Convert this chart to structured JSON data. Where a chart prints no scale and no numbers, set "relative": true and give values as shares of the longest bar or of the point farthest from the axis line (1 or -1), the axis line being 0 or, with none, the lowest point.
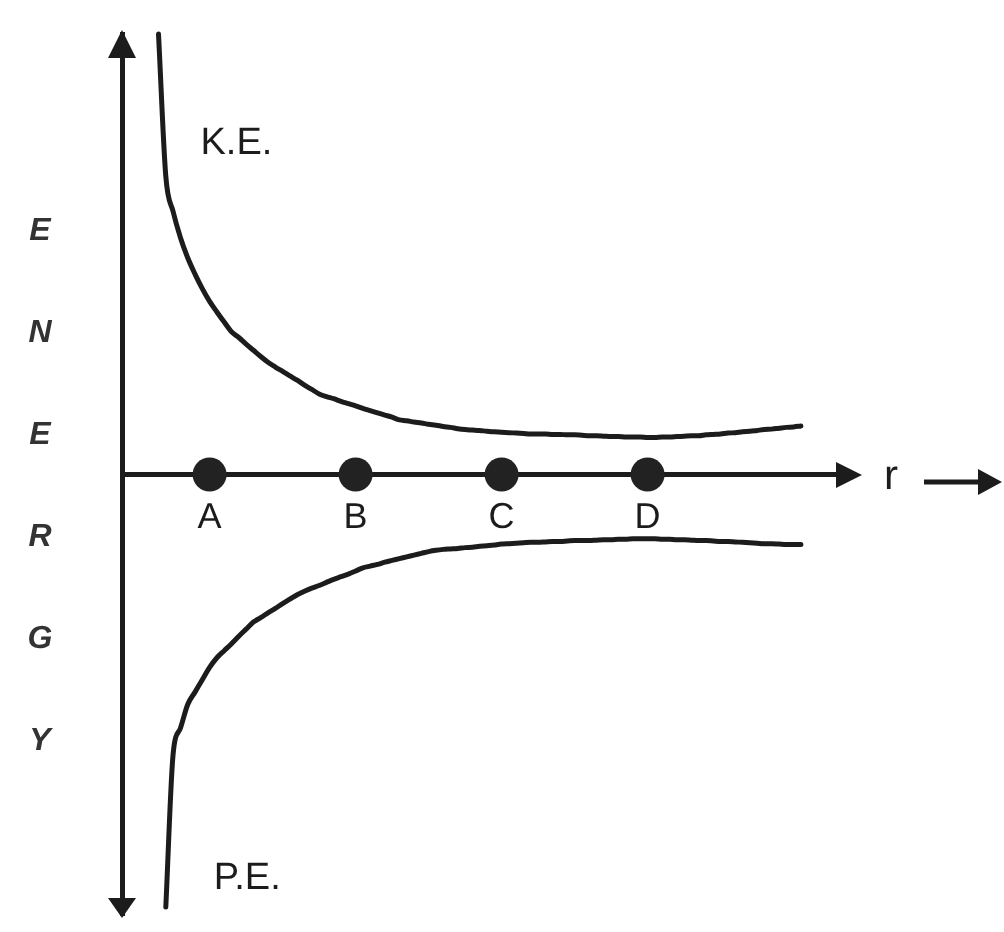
{
  "chart_data": {
    "type": "line",
    "relative": true,
    "xlabel": "r",
    "ylabel": "ENERGY",
    "grid": false,
    "legend": false,
    "marker": "none",
    "categories": [
      null,
      null,
      null,
      null,
      null,
      null,
      null,
      null,
      null,
      null,
      null,
      null,
      "A",
      null,
      null,
      null,
      null,
      null,
      null,
      null,
      null,
      null,
      null,
      null,
      null,
      null,
      null,
      null,
      null,
      null,
      null,
      null,
      "B",
      null,
      null,
      null,
      null,
      null,
      null,
      null,
      null,
      null,
      null,
      null,
      null,
      null,
      null,
      null,
      null,
      null,
      null,
      null,
      "C",
      null,
      null,
      null,
      null,
      null,
      null,
      null,
      null,
      null,
      null,
      null,
      null,
      null,
      null,
      null,
      null,
      null,
      null,
      null,
      "D",
      null,
      null,
      null,
      null,
      null,
      null,
      null,
      null,
      null,
      null,
      null,
      null,
      null,
      null,
      null,
      null,
      null,
      null,
      null,
      null,
      null,
      null,
      null,
      null,
      null,
      null,
      null,
      null
    ],
    "series": [
      {
        "name": "K.E.",
        "color": "#1c1c1c",
        "values": [
          null,
          null,
          null,
          null,
          null,
          1,
          0.677,
          0.597,
          0.538,
          0.492,
          0.455,
          0.422,
          0.393,
          0.369,
          0.346,
          0.324,
          0.311,
          0.296,
          0.282,
          0.268,
          0.255,
          0.244,
          0.234,
          0.224,
          0.214,
          0.203,
          0.193,
          0.183,
          0.177,
          0.172,
          0.166,
          0.161,
          0.156,
          0.15,
          0.145,
          0.14,
          0.135,
          0.13,
          0.124,
          0.122,
          0.119,
          0.117,
          0.114,
          0.112,
          0.109,
          0.107,
          0.104,
          0.102,
          0.101,
          0.1,
          0.098,
          0.097,
          0.096,
          0.095,
          0.094,
          0.093,
          0.092,
          0.092,
          0.092,
          0.091,
          0.091,
          0.09,
          0.09,
          0.089,
          0.088,
          0.088,
          0.087,
          0.086,
          0.086,
          0.085,
          0.085,
          0.085,
          0.084,
          0.084,
          0.085,
          0.085,
          0.086,
          0.087,
          0.088,
          0.088,
          0.09,
          0.091,
          0.092,
          0.094,
          0.095,
          0.097,
          0.098,
          0.1,
          0.102,
          0.103,
          0.105,
          0.107,
          0.108,
          0.11,
          null,
          null,
          null,
          null,
          null,
          null,
          null
        ]
      },
      {
        "name": "P.E.",
        "color": "#1c1c1c",
        "values": [
          null,
          null,
          null,
          null,
          null,
          null,
          -0.982,
          -0.635,
          -0.576,
          -0.522,
          -0.494,
          -0.466,
          -0.438,
          -0.416,
          -0.4,
          -0.384,
          -0.367,
          -0.351,
          -0.335,
          -0.325,
          -0.314,
          -0.304,
          -0.293,
          -0.283,
          -0.273,
          -0.265,
          -0.258,
          -0.252,
          -0.245,
          -0.238,
          -0.232,
          -0.226,
          -0.219,
          -0.212,
          -0.208,
          -0.204,
          -0.199,
          -0.195,
          -0.191,
          -0.187,
          -0.183,
          -0.179,
          -0.175,
          -0.172,
          -0.17,
          -0.169,
          -0.168,
          -0.166,
          -0.165,
          -0.163,
          -0.162,
          -0.16,
          -0.158,
          -0.157,
          -0.156,
          -0.155,
          -0.154,
          -0.154,
          -0.153,
          -0.152,
          -0.152,
          -0.151,
          -0.15,
          -0.15,
          -0.15,
          -0.149,
          -0.148,
          -0.148,
          -0.147,
          -0.147,
          -0.146,
          -0.146,
          -0.146,
          -0.146,
          -0.147,
          -0.147,
          -0.148,
          -0.148,
          -0.149,
          -0.15,
          -0.15,
          -0.151,
          -0.152,
          -0.152,
          -0.153,
          -0.154,
          -0.155,
          -0.156,
          -0.157,
          -0.157,
          -0.158,
          -0.159,
          -0.159,
          -0.159,
          null,
          null,
          null,
          null,
          null,
          null,
          null
        ]
      },
      {
        "type": "scatter",
        "marker": "circle",
        "color": "#222222",
        "values": [
          null,
          null,
          null,
          null,
          null,
          null,
          null,
          null,
          null,
          null,
          null,
          null,
          0,
          null,
          null,
          null,
          null,
          null,
          null,
          null,
          null,
          null,
          null,
          null,
          null,
          null,
          null,
          null,
          null,
          null,
          null,
          null,
          0,
          null,
          null,
          null,
          null,
          null,
          null,
          null,
          null,
          null,
          null,
          null,
          null,
          null,
          null,
          null,
          null,
          null,
          null,
          null,
          0,
          null,
          null,
          null,
          null,
          null,
          null,
          null,
          null,
          null,
          null,
          null,
          null,
          null,
          null,
          null,
          null,
          null,
          null,
          null,
          0,
          null,
          null,
          null,
          null,
          null,
          null,
          null,
          null,
          null,
          null,
          null,
          null,
          null,
          null,
          null,
          null,
          null,
          null,
          null,
          null,
          null,
          null,
          null,
          null,
          null,
          null,
          null,
          null
        ]
      }
    ]
  }
}
